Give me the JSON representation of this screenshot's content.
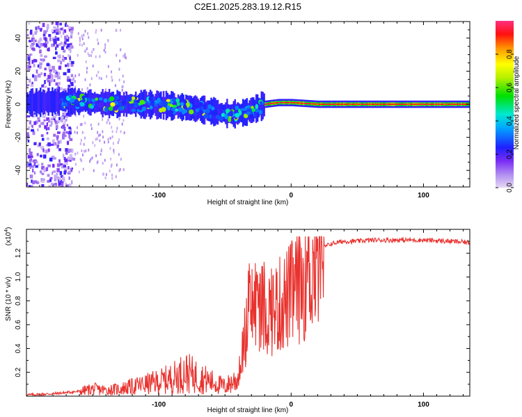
{
  "title": "C2E1.2025.283.19.12.R15",
  "chart_data": [
    {
      "type": "heatmap",
      "title": "C2E1.2025.283.19.12.R15",
      "xlabel": "Height of straight line (km)",
      "ylabel": "Frequency (Hz)",
      "xlim": [
        -200,
        135
      ],
      "ylim": [
        -50,
        50
      ],
      "xticks": [
        -100,
        0,
        100
      ],
      "xtick_labels": [
        "-100",
        "0",
        "100"
      ],
      "yticks": [
        -40,
        -20,
        0,
        20,
        40
      ],
      "ytick_labels": [
        "-40",
        "-20",
        "0",
        "20",
        "40"
      ],
      "colorbar": {
        "label": "Normalized spectral amplitude",
        "range": [
          0,
          1
        ],
        "ticks": [
          0.0,
          0.2,
          0.4,
          0.6,
          0.8
        ],
        "tick_labels": [
          "0.0",
          "0.2",
          "0.4",
          "0.6",
          "0.8"
        ],
        "colormap": "rainbow"
      },
      "ridge": {
        "x": [
          -195,
          -170,
          -150,
          -130,
          -110,
          -90,
          -70,
          -55,
          -45,
          -35,
          -25,
          -20,
          -10,
          0,
          20,
          50,
          100,
          135
        ],
        "y": [
          1,
          2,
          1,
          0,
          0,
          -1,
          -3,
          -5,
          -6,
          -5,
          -2,
          0,
          1,
          1,
          0,
          0,
          0,
          0
        ]
      },
      "scatter_region": {
        "x_range": [
          -200,
          -165
        ],
        "y_range": [
          -50,
          50
        ]
      }
    },
    {
      "type": "line",
      "xlabel": "Height of straight line (km)",
      "ylabel": "SNR (10 * v/v)",
      "y_scale_note": "(x10^4)",
      "y_scale_text": "(x10",
      "y_scale_exp": "4",
      "y_scale_close": ")",
      "xlim": [
        -200,
        135
      ],
      "ylim": [
        0,
        1.4
      ],
      "xticks": [
        -100,
        0,
        100
      ],
      "xtick_labels": [
        "-100",
        "0",
        "100"
      ],
      "yticks": [
        0.2,
        0.4,
        0.6,
        0.8,
        1.0,
        1.2
      ],
      "ytick_labels": [
        "0.2",
        "0.4",
        "0.6",
        "0.8",
        "1.0",
        "1.2"
      ],
      "series": [
        {
          "name": "SNR",
          "color": "#e8322e",
          "x": [
            -200,
            -180,
            -160,
            -150,
            -140,
            -130,
            -120,
            -110,
            -100,
            -90,
            -80,
            -70,
            -60,
            -50,
            -40,
            -35,
            -30,
            -25,
            -20,
            -10,
            0,
            10,
            20,
            25,
            30,
            40,
            50,
            60,
            80,
            100,
            120,
            135
          ],
          "y": [
            0.01,
            0.02,
            0.04,
            0.06,
            0.05,
            0.06,
            0.08,
            0.1,
            0.12,
            0.15,
            0.2,
            0.16,
            0.12,
            0.08,
            0.15,
            0.5,
            0.75,
            0.8,
            0.7,
            0.75,
            0.85,
            1.0,
            1.15,
            1.25,
            1.28,
            1.3,
            1.3,
            1.31,
            1.31,
            1.31,
            1.3,
            1.29
          ]
        }
      ]
    }
  ]
}
